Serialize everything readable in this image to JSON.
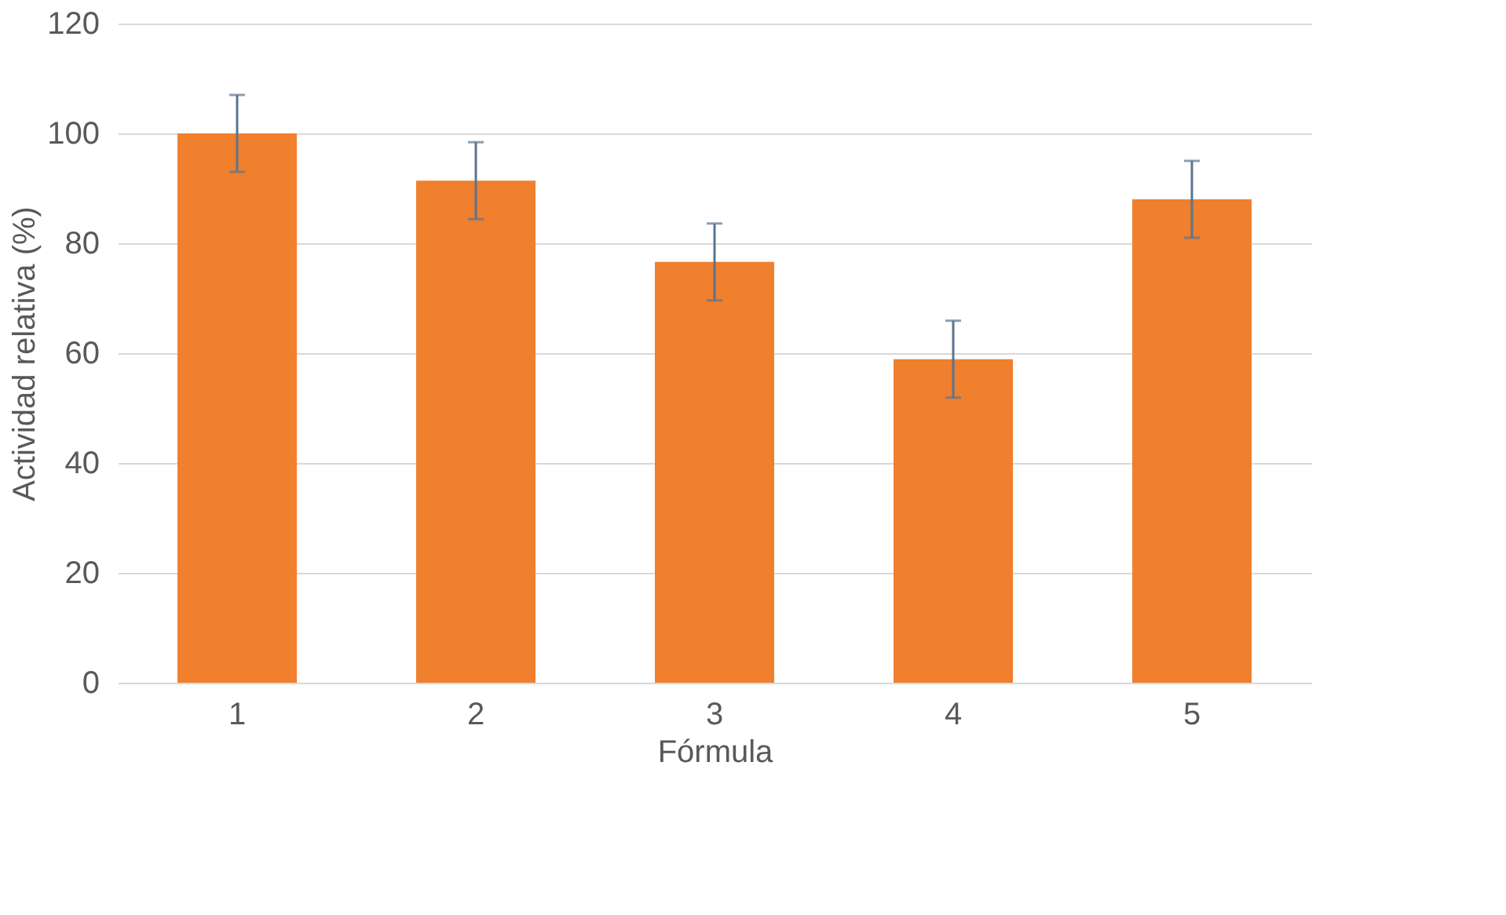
{
  "chart_data": {
    "type": "bar",
    "xlabel": "Fórmula",
    "ylabel": "Actividad relativa (%)",
    "categories": [
      "1",
      "2",
      "3",
      "4",
      "5"
    ],
    "values": [
      100,
      91.4,
      76.6,
      58.9,
      88
    ],
    "errors": [
      7,
      7,
      7,
      7,
      7
    ],
    "color": "#f07f2e",
    "ylim": [
      0,
      120
    ],
    "yticks": [
      0,
      20,
      40,
      60,
      80,
      100,
      120
    ],
    "grid": "y"
  }
}
